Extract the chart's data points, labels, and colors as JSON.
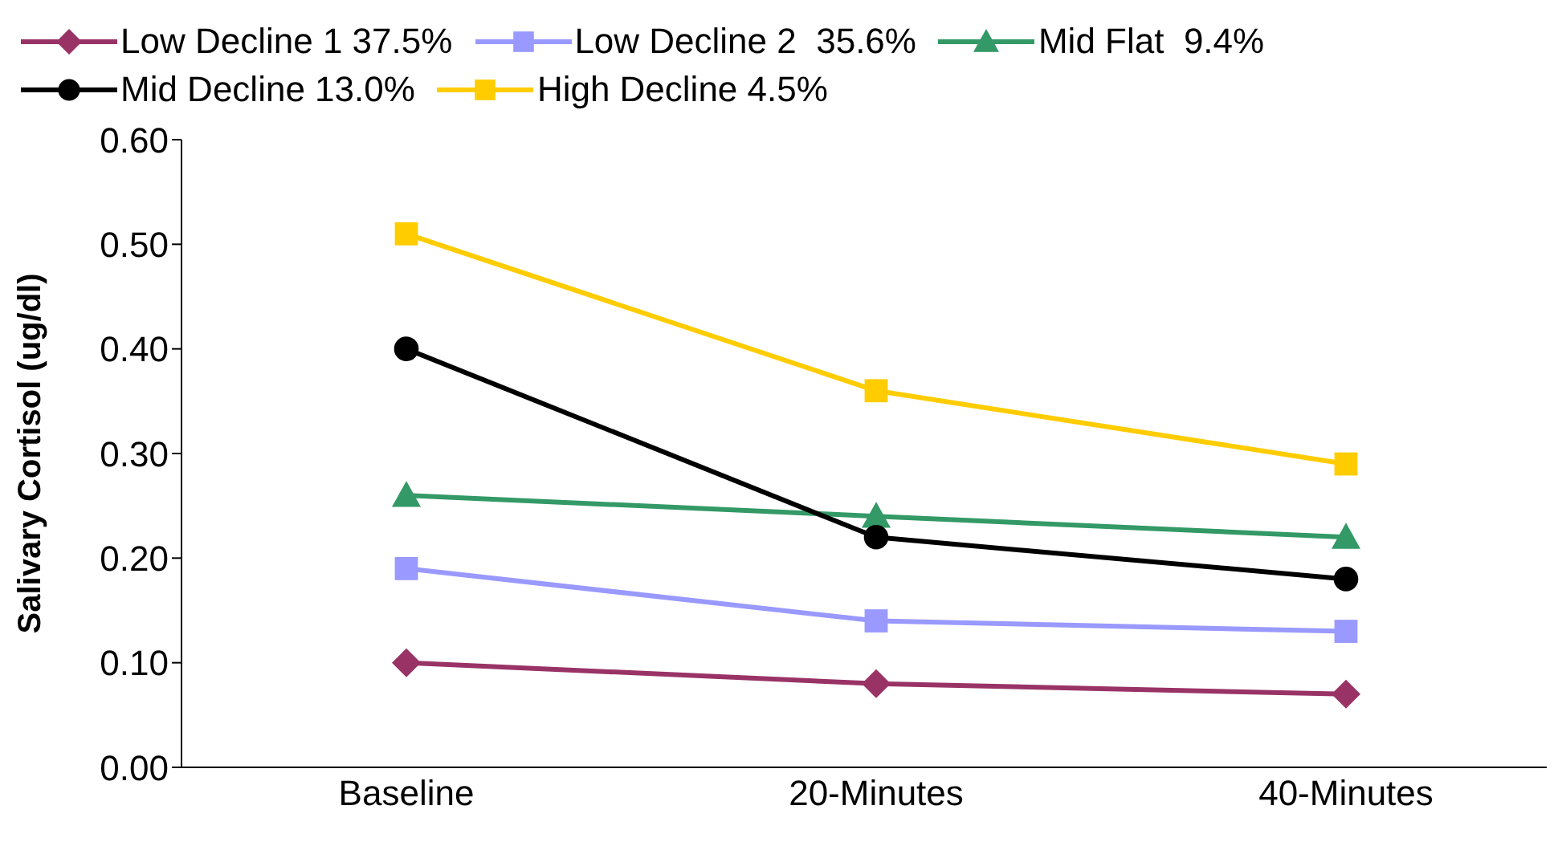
{
  "chart_data": {
    "type": "line",
    "ylabel": "Salivary Cortisol (ug/dl)",
    "categories": [
      "Baseline",
      "20-Minutes",
      "40-Minutes"
    ],
    "ylim": [
      0,
      0.6
    ],
    "yticks": [
      {
        "value": 0,
        "label": "0.00"
      },
      {
        "value": 0.1,
        "label": "0.10"
      },
      {
        "value": 0.2,
        "label": "0.20"
      },
      {
        "value": 0.3,
        "label": "0.30"
      },
      {
        "value": 0.4,
        "label": "0.40"
      },
      {
        "value": 0.5,
        "label": "0.50"
      },
      {
        "value": 0.6,
        "label": "0.60"
      }
    ],
    "grid": false,
    "legend": "top",
    "line_style": "solid",
    "series": [
      {
        "name": "Low Decline 1 37.5%",
        "color": "#993366",
        "marker": "diamond",
        "values": [
          0.1,
          0.08,
          0.07
        ]
      },
      {
        "name": "Low Decline 2  35.6%",
        "color": "#9999ff",
        "marker": "square",
        "values": [
          0.19,
          0.14,
          0.13
        ]
      },
      {
        "name": "Mid Flat  9.4%",
        "color": "#339966",
        "marker": "triangle",
        "values": [
          0.26,
          0.24,
          0.22
        ]
      },
      {
        "name": "Mid Decline 13.0%",
        "color": "#000000",
        "marker": "circle",
        "values": [
          0.4,
          0.22,
          0.18
        ]
      },
      {
        "name": "High Decline 4.5%",
        "color": "#ffcc00",
        "marker": "square",
        "values": [
          0.51,
          0.36,
          0.29
        ]
      }
    ]
  }
}
